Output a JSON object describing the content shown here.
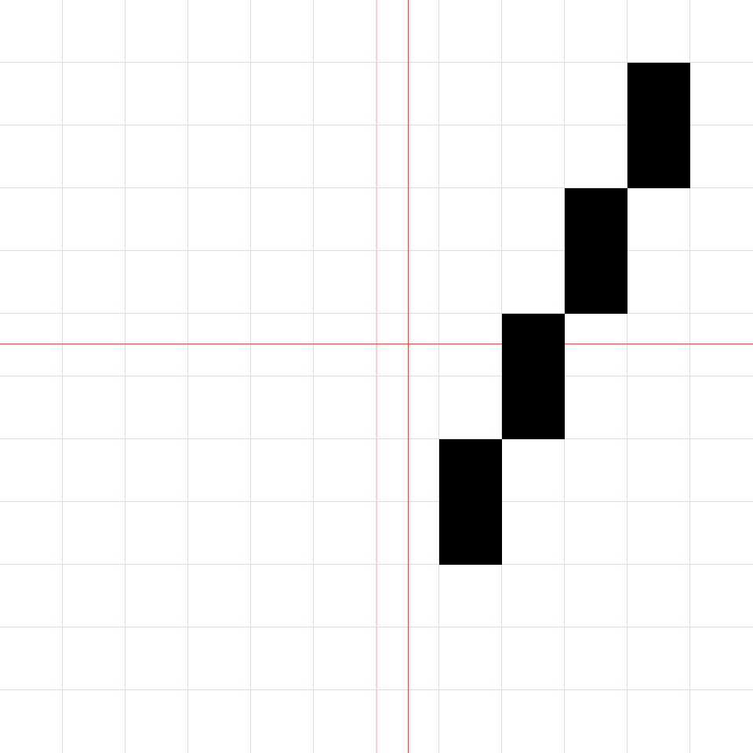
{
  "colors": {
    "background": "#ffffff",
    "grid": "#f5d2cf",
    "axis": "#d9534f",
    "fill": "#000000"
  },
  "filled_cells": [
    {
      "col": 10,
      "row": 1
    },
    {
      "col": 10,
      "row": 2
    },
    {
      "col": 9,
      "row": 3
    },
    {
      "col": 9,
      "row": 4
    },
    {
      "col": 8,
      "row": 5
    },
    {
      "col": 8,
      "row": 6
    },
    {
      "col": 7,
      "row": 7
    },
    {
      "col": 7,
      "row": 8
    }
  ]
}
